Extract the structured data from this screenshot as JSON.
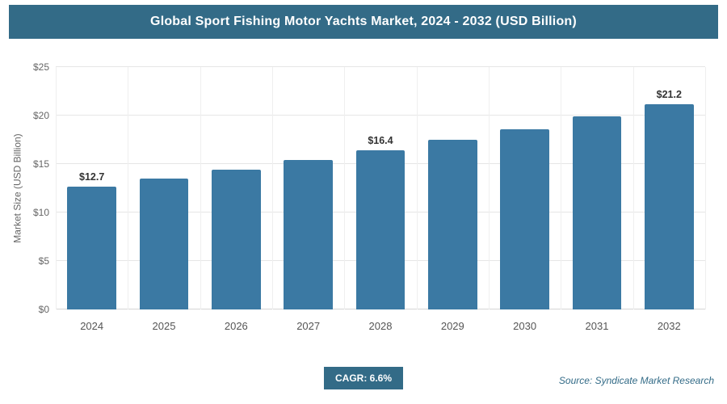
{
  "header": {
    "title": "Global Sport Fishing Motor Yachts Market, 2024 - 2032 (USD Billion)"
  },
  "footer": {
    "cagr_label": "CAGR: 6.6%",
    "source": "Source: Syndicate Market Research"
  },
  "colors": {
    "header_bg": "#336b87",
    "bar": "#3b79a3",
    "badge_bg": "#336b87",
    "source_text": "#336b87"
  },
  "chart_data": {
    "type": "bar",
    "title": "Global Sport Fishing Motor Yachts Market, 2024 - 2032 (USD Billion)",
    "categories": [
      "2024",
      "2025",
      "2026",
      "2027",
      "2028",
      "2029",
      "2030",
      "2031",
      "2032"
    ],
    "values": [
      12.7,
      13.5,
      14.4,
      15.4,
      16.4,
      17.5,
      18.6,
      19.9,
      21.2
    ],
    "bar_labels": [
      "$12.7",
      "",
      "",
      "",
      "$16.4",
      "",
      "",
      "",
      "$21.2"
    ],
    "xlabel": "",
    "ylabel": "Market Size (USD Billion)",
    "ylim": [
      0,
      25
    ],
    "ytick_labels": [
      "$0",
      "$5",
      "$10",
      "$15",
      "$20",
      "$25"
    ],
    "grid": true,
    "legend": false,
    "bar_color": "#3b79a3"
  }
}
